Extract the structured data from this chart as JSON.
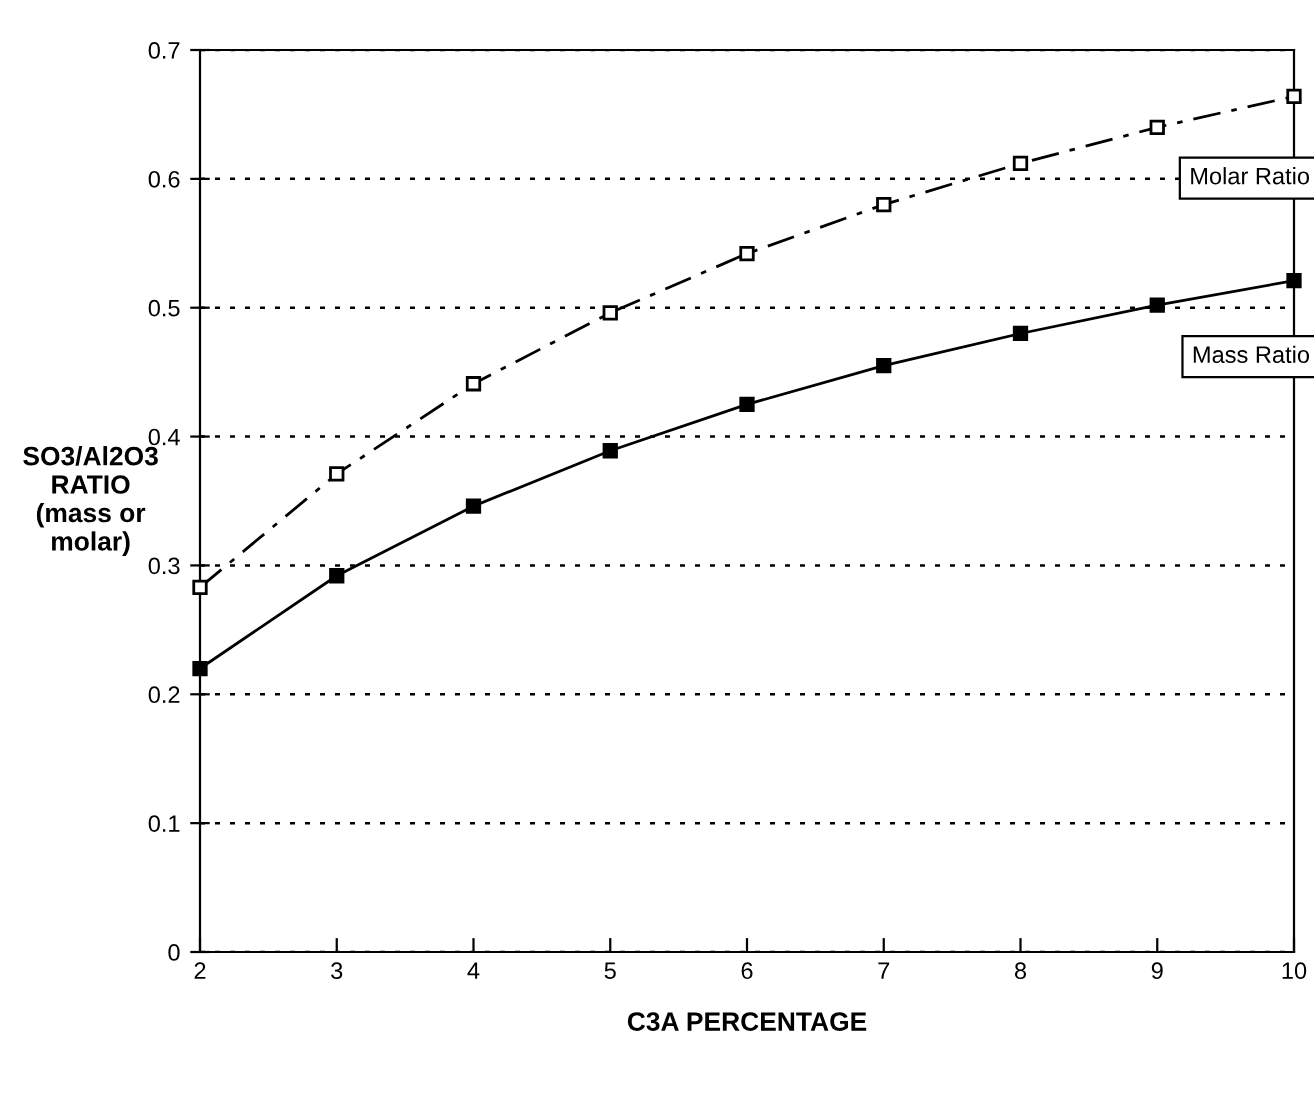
{
  "chart_data": {
    "type": "line",
    "xlabel": "C3A PERCENTAGE",
    "ylabel": "SO3/Al2O3\nRATIO\n(mass or\nmolar)",
    "x": [
      2,
      3,
      4,
      5,
      6,
      7,
      8,
      9,
      10
    ],
    "series": [
      {
        "color": "#000000",
        "marker": "square",
        "line_style": "dashdot",
        "values": [
          0.283,
          0.371,
          0.441,
          0.496,
          0.542,
          0.58,
          0.612,
          0.64,
          0.664
        ]
      },
      {
        "color": "#000000",
        "marker": "square",
        "line_style": "solid",
        "values": [
          0.22,
          0.292,
          0.346,
          0.389,
          0.425,
          0.455,
          0.48,
          0.502,
          0.521
        ]
      }
    ],
    "annotations": [
      "Molar Ratio",
      "Mass Ratio"
    ],
    "xlim": [
      2,
      10
    ],
    "xticks": [
      2,
      3,
      4,
      5,
      6,
      7,
      8,
      9,
      10
    ],
    "ylim": [
      0,
      0.7
    ],
    "yticks": [
      0,
      0.1,
      0.2,
      0.3,
      0.4,
      0.5,
      0.6,
      0.7
    ],
    "grid": "y"
  }
}
